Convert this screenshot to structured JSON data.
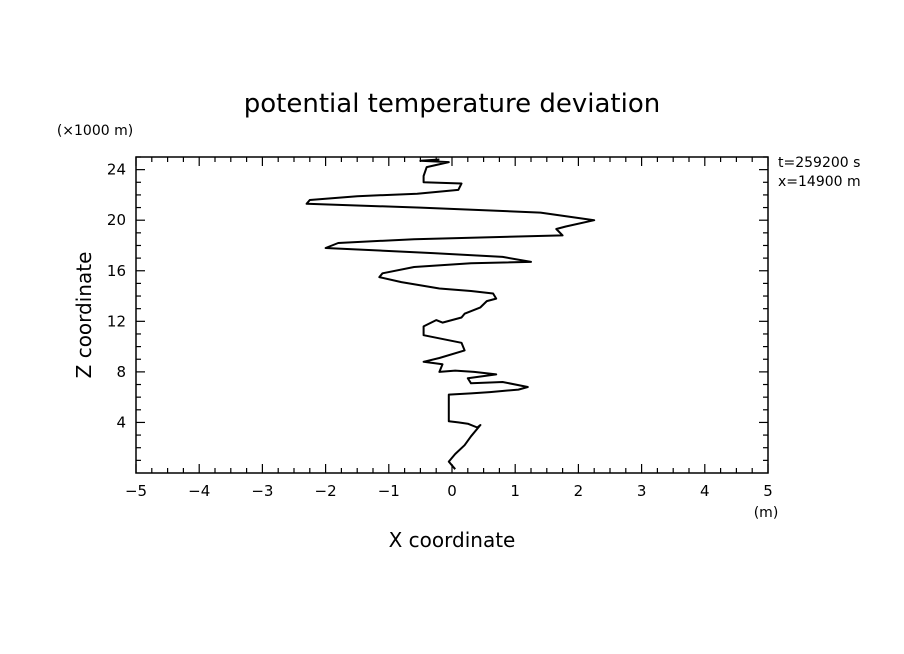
{
  "chart_data": {
    "type": "line",
    "title": "potential temperature deviation",
    "xlabel": "X coordinate",
    "ylabel": "Z coordinate",
    "x_unit": "(m)",
    "y_unit": "(×1000 m)",
    "annotations": [
      "t=259200 s",
      "x=14900 m"
    ],
    "xlim": [
      -5,
      5
    ],
    "ylim": [
      0,
      25
    ],
    "x_ticks": [
      -5,
      -4,
      -3,
      -2,
      -1,
      0,
      1,
      2,
      3,
      4,
      5
    ],
    "y_ticks": [
      4,
      8,
      12,
      16,
      20,
      24
    ],
    "x_tick_labels": [
      "−5",
      "−4",
      "−3",
      "−2",
      "−1",
      "0",
      "1",
      "2",
      "3",
      "4",
      "5"
    ],
    "y_tick_labels": [
      "4",
      "8",
      "12",
      "16",
      "20",
      "24"
    ],
    "grid": false,
    "series": [
      {
        "x": [
          0.05,
          -0.05,
          0.05,
          0.2,
          0.3,
          0.45,
          0.4,
          0.25,
          0.1,
          -0.05,
          -0.05,
          -0.05,
          0.3,
          0.6,
          1.05,
          1.2,
          0.8,
          0.3,
          0.25,
          0.7,
          0.35,
          0.05,
          -0.2,
          -0.15,
          -0.45,
          -0.2,
          0.2,
          0.15,
          -0.45,
          -0.45,
          -0.25,
          -0.15,
          0.15,
          0.2,
          0.45,
          0.55,
          0.7,
          0.65,
          0.3,
          -0.2,
          -0.8,
          -1.15,
          -1.1,
          -0.6,
          0.3,
          1.25,
          0.8,
          -0.3,
          -2.0,
          -1.8,
          -0.6,
          1.75,
          1.65,
          1.8,
          2.25,
          1.4,
          -0.5,
          -2.3,
          -2.25,
          -1.5,
          -0.55,
          0.1,
          0.15,
          -0.45,
          -0.45,
          -0.4,
          -0.05,
          -0.5,
          -0.2
        ],
        "y": [
          0.3,
          0.9,
          1.5,
          2.2,
          2.9,
          3.8,
          3.6,
          3.9,
          4.0,
          4.1,
          5.0,
          6.2,
          6.3,
          6.4,
          6.6,
          6.8,
          7.2,
          7.1,
          7.5,
          7.8,
          8.0,
          8.1,
          8.0,
          8.6,
          8.8,
          9.1,
          9.7,
          10.3,
          10.9,
          11.6,
          12.1,
          11.9,
          12.3,
          12.6,
          13.1,
          13.6,
          13.8,
          14.2,
          14.4,
          14.6,
          15.1,
          15.5,
          15.8,
          16.3,
          16.6,
          16.7,
          17.1,
          17.4,
          17.8,
          18.2,
          18.5,
          18.8,
          19.3,
          19.5,
          20.0,
          20.6,
          21.0,
          21.3,
          21.6,
          21.9,
          22.1,
          22.4,
          22.9,
          23.0,
          23.5,
          24.2,
          24.6,
          24.7,
          24.8
        ]
      }
    ]
  }
}
